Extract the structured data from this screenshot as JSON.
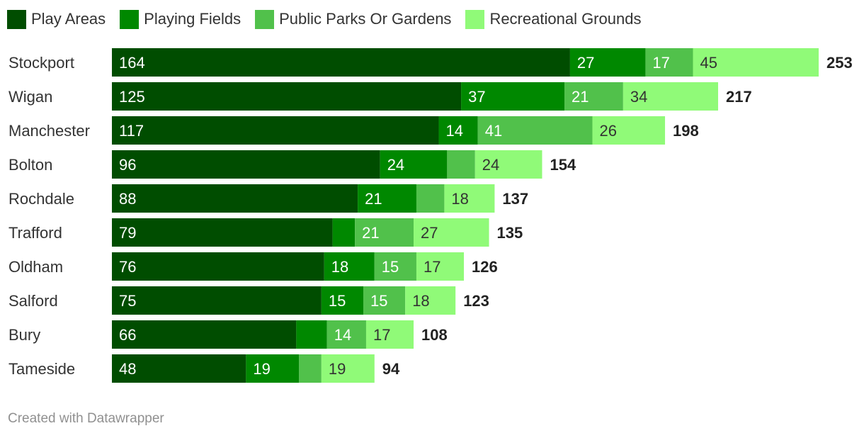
{
  "footer": "Created with Datawrapper",
  "chart_data": {
    "type": "bar",
    "orientation": "horizontal",
    "stacked": true,
    "categories": [
      "Stockport",
      "Wigan",
      "Manchester",
      "Bolton",
      "Rochdale",
      "Trafford",
      "Oldham",
      "Salford",
      "Bury",
      "Tameside"
    ],
    "series": [
      {
        "name": "Play Areas",
        "color": "#004d00",
        "values": [
          164,
          125,
          117,
          96,
          88,
          79,
          76,
          75,
          66,
          48
        ]
      },
      {
        "name": "Playing Fields",
        "color": "#008800",
        "values": [
          27,
          37,
          14,
          24,
          21,
          8,
          18,
          15,
          11,
          19
        ]
      },
      {
        "name": "Public Parks Or Gardens",
        "color": "#51c14b",
        "values": [
          17,
          21,
          41,
          10,
          10,
          21,
          15,
          15,
          14,
          8
        ]
      },
      {
        "name": "Recreational Grounds",
        "color": "#90fa78",
        "values": [
          45,
          34,
          26,
          24,
          18,
          27,
          17,
          18,
          17,
          19
        ]
      }
    ],
    "segment_labels": [
      [
        "164",
        "27",
        "17",
        "45"
      ],
      [
        "125",
        "37",
        "21",
        "34"
      ],
      [
        "117",
        "14",
        "41",
        "26"
      ],
      [
        "96",
        "24",
        "",
        "24"
      ],
      [
        "88",
        "21",
        "",
        "18"
      ],
      [
        "79",
        "",
        "21",
        "27"
      ],
      [
        "76",
        "18",
        "15",
        "17"
      ],
      [
        "75",
        "15",
        "15",
        "18"
      ],
      [
        "66",
        "",
        "14",
        "17"
      ],
      [
        "48",
        "19",
        "",
        "19"
      ]
    ],
    "totals": [
      253,
      217,
      198,
      154,
      137,
      135,
      126,
      123,
      108,
      94
    ],
    "label_colors": [
      "#ffffff",
      "#ffffff",
      "#ffffff",
      "#333333"
    ],
    "legend_position": "top-left",
    "grid": false
  }
}
